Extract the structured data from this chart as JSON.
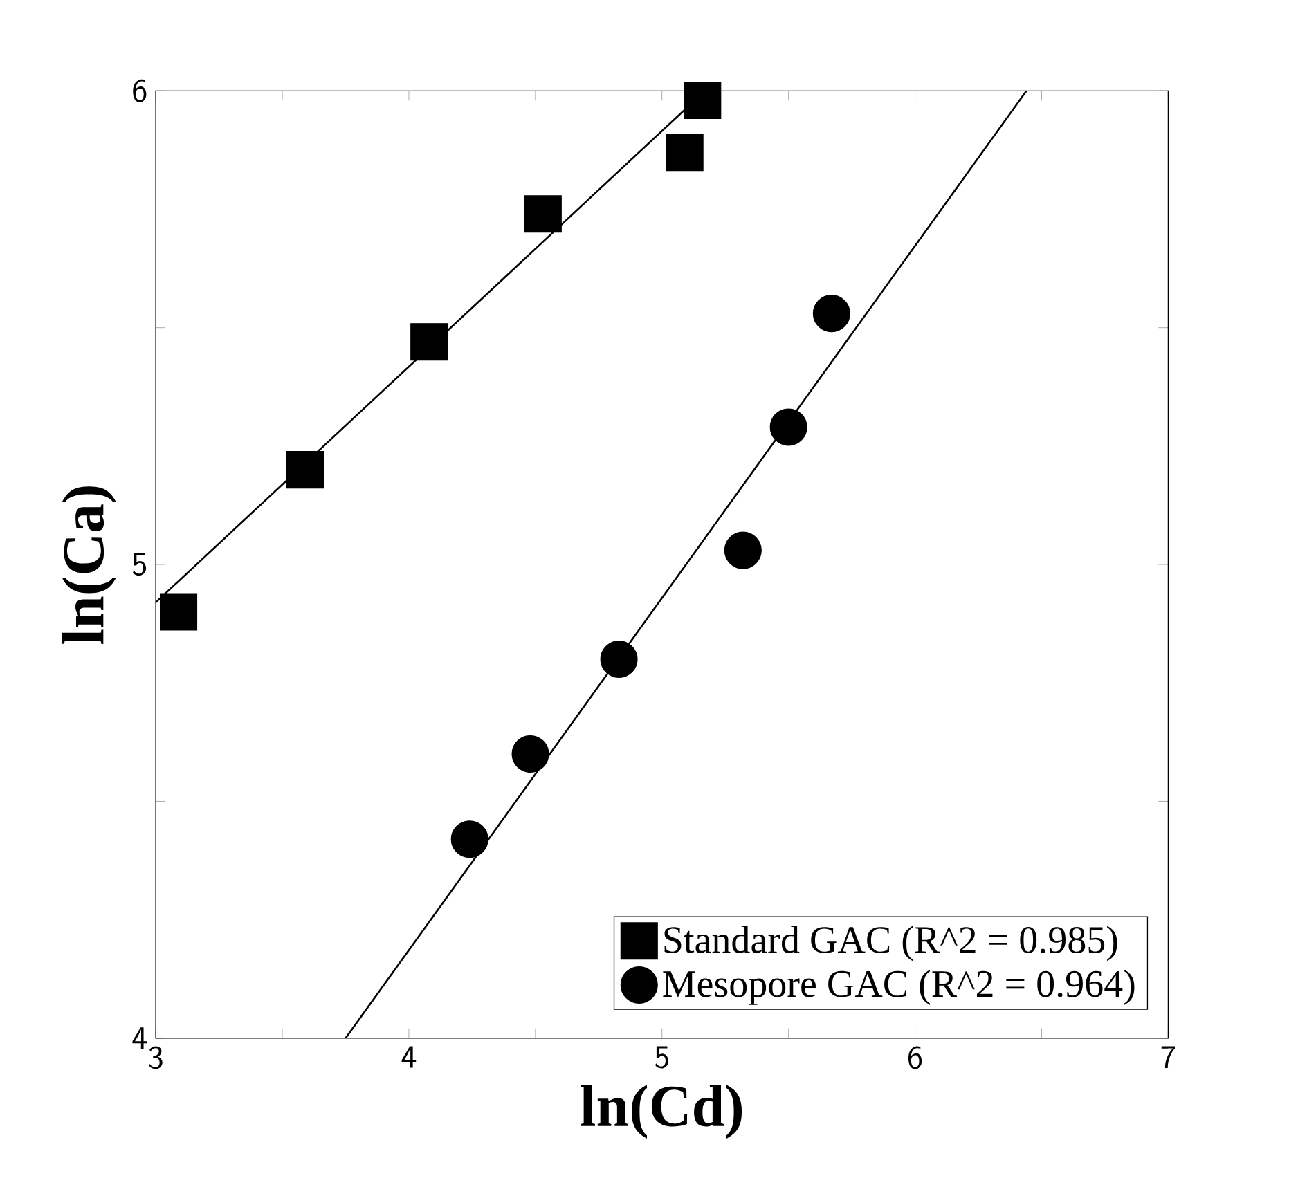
{
  "chart_data": {
    "type": "scatter",
    "xlabel": "ln(Cd)",
    "ylabel": "ln(Ca)",
    "xlim": [
      3,
      7
    ],
    "ylim": [
      4,
      6
    ],
    "xticks": [
      3,
      {
        "value": 3.5,
        "label": null
      },
      4,
      {
        "value": 4.5,
        "label": null
      },
      5,
      {
        "value": 5.5,
        "label": null
      },
      6,
      {
        "value": 6.5,
        "label": null
      },
      7
    ],
    "yticks": [
      4,
      {
        "value": 4.5,
        "label": null
      },
      5,
      {
        "value": 5.5,
        "label": null
      },
      6
    ],
    "legend": "bottom right",
    "grid": false,
    "series": [
      {
        "name": "Standard GAC  (R^2 = 0.985)",
        "color": "#000000",
        "marker": "square",
        "x": [
          3.09,
          3.59,
          4.08,
          4.53,
          5.09,
          5.16
        ],
        "values": [
          4.9,
          5.2,
          5.47,
          5.74,
          5.87,
          5.98
        ]
      },
      {
        "name": "Mesopore GAC  (R^2 = 0.964)",
        "color": "#000000",
        "marker": "circle",
        "x": [
          4.24,
          4.48,
          4.83,
          5.32,
          5.5,
          5.67
        ],
        "values": [
          4.42,
          4.6,
          4.8,
          5.03,
          5.29,
          5.53
        ]
      },
      {
        "type": "line",
        "color": "#000000",
        "marker": "none",
        "x": [
          3,
          5.17
        ],
        "values": [
          4.92,
          6
        ]
      },
      {
        "type": "line",
        "color": "#000000",
        "marker": "none",
        "x": [
          3.75,
          6.44
        ],
        "values": [
          4,
          6
        ]
      }
    ]
  }
}
